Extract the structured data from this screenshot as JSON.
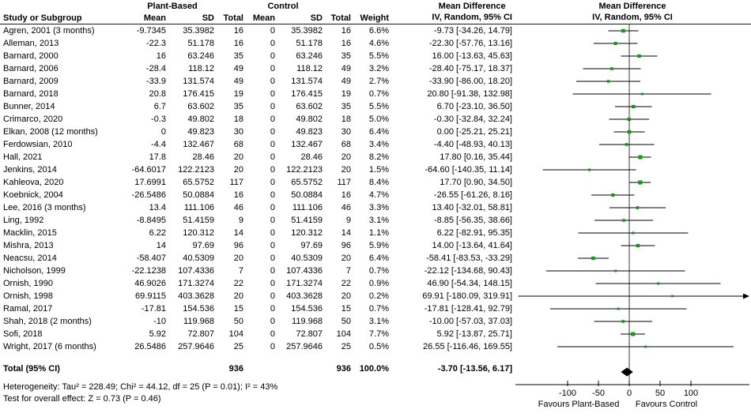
{
  "table": {
    "group_plant": "Plant-Based",
    "group_control": "Control",
    "col_study": "Study or Subgroup",
    "col_mean": "Mean",
    "col_sd": "SD",
    "col_total": "Total",
    "col_weight": "Weight",
    "md_title": "Mean Difference",
    "md_subtitle": "IV, Random, 95% CI"
  },
  "footnotes": {
    "heterogeneity": "Heterogeneity: Tau² = 228.49; Chi² = 44.12, df = 25 (P = 0.01); I² = 43%",
    "overall_effect": "Test for overall effect: Z = 0.73 (P = 0.46)"
  },
  "chart_data": {
    "type": "forest",
    "effect_measure": "Mean Difference, IV, Random, 95% CI",
    "marker_color": "#00b400",
    "marker_edge_color": "#006400",
    "line_color": "#000000",
    "studies": [
      {
        "name": "Agren, 2001 (3 months)",
        "mean_pb": "-9.7345",
        "sd_pb": "35.3982",
        "n_pb": "16",
        "mean_c": "0",
        "sd_c": "35.3982",
        "n_c": "16",
        "weight": "6.6%",
        "ci_label": "-9.73 [-34.26, 14.79]",
        "est": -9.73,
        "lo": -34.26,
        "hi": 14.79,
        "w": 6.6
      },
      {
        "name": "Alleman, 2013",
        "mean_pb": "-22.3",
        "sd_pb": "51.178",
        "n_pb": "16",
        "mean_c": "0",
        "sd_c": "51.178",
        "n_c": "16",
        "weight": "4.6%",
        "ci_label": "-22.30 [-57.76, 13.16]",
        "est": -22.3,
        "lo": -57.76,
        "hi": 13.16,
        "w": 4.6
      },
      {
        "name": "Barnard, 2000",
        "mean_pb": "16",
        "sd_pb": "63.246",
        "n_pb": "35",
        "mean_c": "0",
        "sd_c": "63.246",
        "n_c": "35",
        "weight": "5.5%",
        "ci_label": "16.00 [-13.63, 45.63]",
        "est": 16.0,
        "lo": -13.63,
        "hi": 45.63,
        "w": 5.5
      },
      {
        "name": "Barnard, 2006",
        "mean_pb": "-28.4",
        "sd_pb": "118.12",
        "n_pb": "49",
        "mean_c": "0",
        "sd_c": "118.12",
        "n_c": "49",
        "weight": "3.2%",
        "ci_label": "-28.40 [-75.17, 18.37]",
        "est": -28.4,
        "lo": -75.17,
        "hi": 18.37,
        "w": 3.2
      },
      {
        "name": "Barnard, 2009",
        "mean_pb": "-33.9",
        "sd_pb": "131.574",
        "n_pb": "49",
        "mean_c": "0",
        "sd_c": "131.574",
        "n_c": "49",
        "weight": "2.7%",
        "ci_label": "-33.90 [-86.00, 18.20]",
        "est": -33.9,
        "lo": -86.0,
        "hi": 18.2,
        "w": 2.7
      },
      {
        "name": "Barnard, 2018",
        "mean_pb": "20.8",
        "sd_pb": "176.415",
        "n_pb": "19",
        "mean_c": "0",
        "sd_c": "176.415",
        "n_c": "19",
        "weight": "0.7%",
        "ci_label": "20.80 [-91.38, 132.98]",
        "est": 20.8,
        "lo": -91.38,
        "hi": 132.98,
        "w": 0.7
      },
      {
        "name": "Bunner, 2014",
        "mean_pb": "6.7",
        "sd_pb": "63.602",
        "n_pb": "35",
        "mean_c": "0",
        "sd_c": "63.602",
        "n_c": "35",
        "weight": "5.5%",
        "ci_label": "6.70 [-23.10, 36.50]",
        "est": 6.7,
        "lo": -23.1,
        "hi": 36.5,
        "w": 5.5
      },
      {
        "name": "Crimarco, 2020",
        "mean_pb": "-0.3",
        "sd_pb": "49.802",
        "n_pb": "18",
        "mean_c": "0",
        "sd_c": "49.802",
        "n_c": "18",
        "weight": "5.0%",
        "ci_label": "-0.30 [-32.84, 32.24]",
        "est": -0.3,
        "lo": -32.84,
        "hi": 32.24,
        "w": 5.0
      },
      {
        "name": "Elkan, 2008 (12 months)",
        "mean_pb": "0",
        "sd_pb": "49.823",
        "n_pb": "30",
        "mean_c": "0",
        "sd_c": "49.823",
        "n_c": "30",
        "weight": "6.4%",
        "ci_label": "0.00 [-25.21, 25.21]",
        "est": 0.0,
        "lo": -25.21,
        "hi": 25.21,
        "w": 6.4
      },
      {
        "name": "Ferdowsian, 2010",
        "mean_pb": "-4.4",
        "sd_pb": "132.467",
        "n_pb": "68",
        "mean_c": "0",
        "sd_c": "132.467",
        "n_c": "68",
        "weight": "3.4%",
        "ci_label": "-4.40 [-48.93, 40.13]",
        "est": -4.4,
        "lo": -48.93,
        "hi": 40.13,
        "w": 3.4
      },
      {
        "name": "Hall, 2021",
        "mean_pb": "17.8",
        "sd_pb": "28.46",
        "n_pb": "20",
        "mean_c": "0",
        "sd_c": "28.46",
        "n_c": "20",
        "weight": "8.2%",
        "ci_label": "17.80 [0.16, 35.44]",
        "est": 17.8,
        "lo": 0.16,
        "hi": 35.44,
        "w": 8.2
      },
      {
        "name": "Jenkins, 2014",
        "mean_pb": "-64.6017",
        "sd_pb": "122.2123",
        "n_pb": "20",
        "mean_c": "0",
        "sd_c": "122.2123",
        "n_c": "20",
        "weight": "1.5%",
        "ci_label": "-64.60 [-140.35, 11.14]",
        "est": -64.6,
        "lo": -140.35,
        "hi": 11.14,
        "w": 1.5
      },
      {
        "name": "Kahleova, 2020",
        "mean_pb": "17.6991",
        "sd_pb": "65.5752",
        "n_pb": "117",
        "mean_c": "0",
        "sd_c": "65.5752",
        "n_c": "117",
        "weight": "8.4%",
        "ci_label": "17.70 [0.90, 34.50]",
        "est": 17.7,
        "lo": 0.9,
        "hi": 34.5,
        "w": 8.4
      },
      {
        "name": "Koebnick, 2004",
        "mean_pb": "-26.5486",
        "sd_pb": "50.0884",
        "n_pb": "16",
        "mean_c": "0",
        "sd_c": "50.0884",
        "n_c": "16",
        "weight": "4.7%",
        "ci_label": "-26.55 [-61.26, 8.16]",
        "est": -26.55,
        "lo": -61.26,
        "hi": 8.16,
        "w": 4.7
      },
      {
        "name": "Lee, 2016 (3 months)",
        "mean_pb": "13.4",
        "sd_pb": "111.106",
        "n_pb": "46",
        "mean_c": "0",
        "sd_c": "111.106",
        "n_c": "46",
        "weight": "3.3%",
        "ci_label": "13.40 [-32.01, 58.81]",
        "est": 13.4,
        "lo": -32.01,
        "hi": 58.81,
        "w": 3.3
      },
      {
        "name": "Ling, 1992",
        "mean_pb": "-8.8495",
        "sd_pb": "51.4159",
        "n_pb": "9",
        "mean_c": "0",
        "sd_c": "51.4159",
        "n_c": "9",
        "weight": "3.1%",
        "ci_label": "-8.85 [-56.35, 38.66]",
        "est": -8.85,
        "lo": -56.35,
        "hi": 38.66,
        "w": 3.1
      },
      {
        "name": "Macklin, 2015",
        "mean_pb": "6.22",
        "sd_pb": "120.312",
        "n_pb": "14",
        "mean_c": "0",
        "sd_c": "120.312",
        "n_c": "14",
        "weight": "1.1%",
        "ci_label": "6.22 [-82.91, 95.35]",
        "est": 6.22,
        "lo": -82.91,
        "hi": 95.35,
        "w": 1.1
      },
      {
        "name": "Mishra, 2013",
        "mean_pb": "14",
        "sd_pb": "97.69",
        "n_pb": "96",
        "mean_c": "0",
        "sd_c": "97.69",
        "n_c": "96",
        "weight": "5.9%",
        "ci_label": "14.00 [-13.64, 41.64]",
        "est": 14.0,
        "lo": -13.64,
        "hi": 41.64,
        "w": 5.9
      },
      {
        "name": "Neacsu, 2014",
        "mean_pb": "-58.407",
        "sd_pb": "40.5309",
        "n_pb": "20",
        "mean_c": "0",
        "sd_c": "40.5309",
        "n_c": "20",
        "weight": "6.4%",
        "ci_label": "-58.41 [-83.53, -33.29]",
        "est": -58.41,
        "lo": -83.53,
        "hi": -33.29,
        "w": 6.4
      },
      {
        "name": "Nicholson, 1999",
        "mean_pb": "-22.1238",
        "sd_pb": "107.4336",
        "n_pb": "7",
        "mean_c": "0",
        "sd_c": "107.4336",
        "n_c": "7",
        "weight": "0.7%",
        "ci_label": "-22.12 [-134.68, 90.43]",
        "est": -22.12,
        "lo": -134.68,
        "hi": 90.43,
        "w": 0.7
      },
      {
        "name": "Ornish, 1990",
        "mean_pb": "46.9026",
        "sd_pb": "171.3274",
        "n_pb": "22",
        "mean_c": "0",
        "sd_c": "171.3274",
        "n_c": "22",
        "weight": "0.9%",
        "ci_label": "46.90 [-54.34, 148.15]",
        "est": 46.9,
        "lo": -54.34,
        "hi": 148.15,
        "w": 0.9
      },
      {
        "name": "Ornish, 1998",
        "mean_pb": "69.9115",
        "sd_pb": "403.3628",
        "n_pb": "20",
        "mean_c": "0",
        "sd_c": "403.3628",
        "n_c": "20",
        "weight": "0.2%",
        "ci_label": "69.91 [-180.09, 319.91]",
        "est": 69.91,
        "lo": -180.09,
        "hi": 319.91,
        "w": 0.2
      },
      {
        "name": "Ramal, 2017",
        "mean_pb": "-17.81",
        "sd_pb": "154.536",
        "n_pb": "15",
        "mean_c": "0",
        "sd_c": "154.536",
        "n_c": "15",
        "weight": "0.7%",
        "ci_label": "-17.81 [-128.41, 92.79]",
        "est": -17.81,
        "lo": -128.41,
        "hi": 92.79,
        "w": 0.7
      },
      {
        "name": "Shah, 2018 (2 months)",
        "mean_pb": "-10",
        "sd_pb": "119.968",
        "n_pb": "50",
        "mean_c": "0",
        "sd_c": "119.968",
        "n_c": "50",
        "weight": "3.1%",
        "ci_label": "-10.00 [-57.03, 37.03]",
        "est": -10.0,
        "lo": -57.03,
        "hi": 37.03,
        "w": 3.1
      },
      {
        "name": "Sofi, 2018",
        "mean_pb": "5.92",
        "sd_pb": "72.807",
        "n_pb": "104",
        "mean_c": "0",
        "sd_c": "72.807",
        "n_c": "104",
        "weight": "7.7%",
        "ci_label": "5.92 [-13.87, 25.71]",
        "est": 5.92,
        "lo": -13.87,
        "hi": 25.71,
        "w": 7.7
      },
      {
        "name": "Wright, 2017 (6 months)",
        "mean_pb": "26.5486",
        "sd_pb": "257.9646",
        "n_pb": "25",
        "mean_c": "0",
        "sd_c": "257.9646",
        "n_c": "25",
        "weight": "0.5%",
        "ci_label": "26.55 [-116.46, 169.55]",
        "est": 26.55,
        "lo": -116.46,
        "hi": 169.55,
        "w": 0.5
      }
    ],
    "total": {
      "label": "Total (95% CI)",
      "n_pb": "936",
      "n_c": "936",
      "weight": "100.0%",
      "ci_label": "-3.70 [-13.56, 6.17]",
      "est": -3.7,
      "lo": -13.56,
      "hi": 6.17
    },
    "axis": {
      "ticks": [
        -100,
        -50,
        0,
        50,
        100
      ],
      "tick_labels": [
        "-100",
        "-50",
        "0",
        "50",
        "100"
      ],
      "xlim_visible": [
        -187,
        197
      ],
      "favours_left": "Favours Plant-Based",
      "favours_right": "Favours Control"
    }
  }
}
